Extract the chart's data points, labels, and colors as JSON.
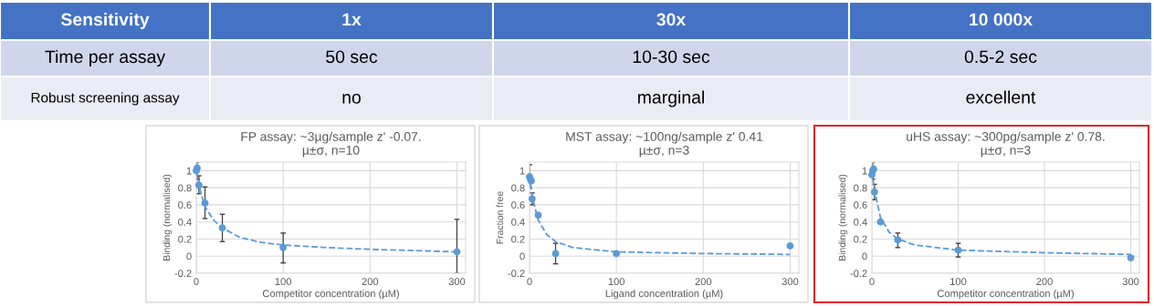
{
  "chart_data": [
    {
      "type": "other",
      "annotations": [
        "Sensitivity",
        "1x",
        "30x",
        "10 000x",
        "Time per assay",
        "50 sec",
        "10-30 sec",
        "0.5-2 sec",
        "Robust screening assay",
        "no",
        "marginal",
        "excellent"
      ]
    },
    {
      "type": "scatter",
      "title": "FP assay: ~3µg/sample z' -0.07.\nµ±σ, n=10",
      "xlabel": "Competitor concentration (µM)",
      "ylabel": "Binding (normalised)",
      "xlim": [
        0,
        310
      ],
      "xticks": [
        0,
        100,
        200,
        300
      ],
      "ylim": [
        -0.2,
        1.1
      ],
      "yticks": [
        -0.2,
        0,
        0.2,
        0.4,
        0.6,
        0.8,
        1
      ],
      "grid": true,
      "legend": false,
      "series": [
        {
          "type": "scatter",
          "color": "#5b9bd5",
          "marker": "circle",
          "x": [
            0,
            1,
            3,
            10,
            30,
            100,
            300
          ],
          "values": [
            1.0,
            1.03,
            0.83,
            0.62,
            0.33,
            0.1,
            0.05
          ],
          "errors": [
            null,
            [
              0.9,
              1.1
            ],
            [
              0.73,
              0.94
            ],
            [
              0.44,
              0.81
            ],
            [
              0.17,
              0.49
            ],
            [
              -0.08,
              0.27
            ],
            [
              -0.2,
              0.43
            ]
          ]
        },
        {
          "type": "line",
          "color": "#5b9bd5",
          "marker": "none",
          "line_style": "dashed",
          "x": [
            0,
            2,
            5,
            10,
            20,
            30,
            50,
            75,
            100,
            150,
            200,
            300
          ],
          "values": [
            1.0,
            0.9,
            0.75,
            0.58,
            0.42,
            0.33,
            0.22,
            0.16,
            0.13,
            0.1,
            0.08,
            0.05
          ]
        }
      ]
    },
    {
      "type": "scatter",
      "title": "MST assay: ~100ng/sample z' 0.41\nµ±σ, n=3",
      "xlabel": "Ligand concentration (µM)",
      "ylabel": "Fraction free",
      "xlim": [
        0,
        310
      ],
      "xticks": [
        0,
        100,
        200,
        300
      ],
      "ylim": [
        -0.2,
        1.1
      ],
      "yticks": [
        -0.2,
        0,
        0.2,
        0.4,
        0.6,
        0.8,
        1
      ],
      "grid": true,
      "legend": false,
      "series": [
        {
          "type": "scatter",
          "color": "#5b9bd5",
          "marker": "circle",
          "x": [
            0,
            1,
            2,
            3,
            10,
            30,
            100,
            300
          ],
          "values": [
            0.93,
            0.9,
            0.88,
            0.67,
            0.48,
            0.03,
            0.03,
            0.12
          ],
          "errors": [
            [
              0.8,
              1.07
            ],
            null,
            null,
            [
              0.6,
              0.74
            ],
            null,
            [
              -0.09,
              0.15
            ],
            null,
            null
          ]
        },
        {
          "type": "line",
          "color": "#5b9bd5",
          "marker": "none",
          "line_style": "dashed",
          "x": [
            0,
            3,
            10,
            20,
            30,
            50,
            100,
            200,
            300
          ],
          "values": [
            0.95,
            0.7,
            0.42,
            0.25,
            0.17,
            0.1,
            0.05,
            0.03,
            0.02
          ]
        }
      ]
    },
    {
      "type": "scatter",
      "title": "uHS assay: ~300pg/sample z' 0.78.\nµ±σ, n=3",
      "xlabel": "Competitor concentration (µM)",
      "ylabel": "Binding (normalised)",
      "xlim": [
        0,
        310
      ],
      "xticks": [
        0,
        100,
        200,
        300
      ],
      "ylim": [
        -0.2,
        1.1
      ],
      "yticks": [
        -0.2,
        0,
        0.2,
        0.4,
        0.6,
        0.8,
        1
      ],
      "grid": true,
      "legend": false,
      "series": [
        {
          "type": "scatter",
          "color": "#5b9bd5",
          "marker": "circle",
          "x": [
            0,
            1,
            2,
            3,
            10,
            30,
            100,
            300
          ],
          "values": [
            0.95,
            1.0,
            1.02,
            0.75,
            0.4,
            0.19,
            0.07,
            -0.02
          ],
          "errors": [
            null,
            [
              0.9,
              1.1
            ],
            null,
            [
              0.66,
              0.84
            ],
            null,
            [
              0.1,
              0.27
            ],
            [
              -0.01,
              0.15
            ],
            null
          ]
        },
        {
          "type": "line",
          "color": "#5b9bd5",
          "marker": "none",
          "line_style": "dashed",
          "x": [
            0,
            3,
            10,
            20,
            30,
            50,
            100,
            200,
            300
          ],
          "values": [
            1.0,
            0.77,
            0.45,
            0.28,
            0.2,
            0.13,
            0.07,
            0.04,
            0.02
          ]
        }
      ]
    }
  ]
}
